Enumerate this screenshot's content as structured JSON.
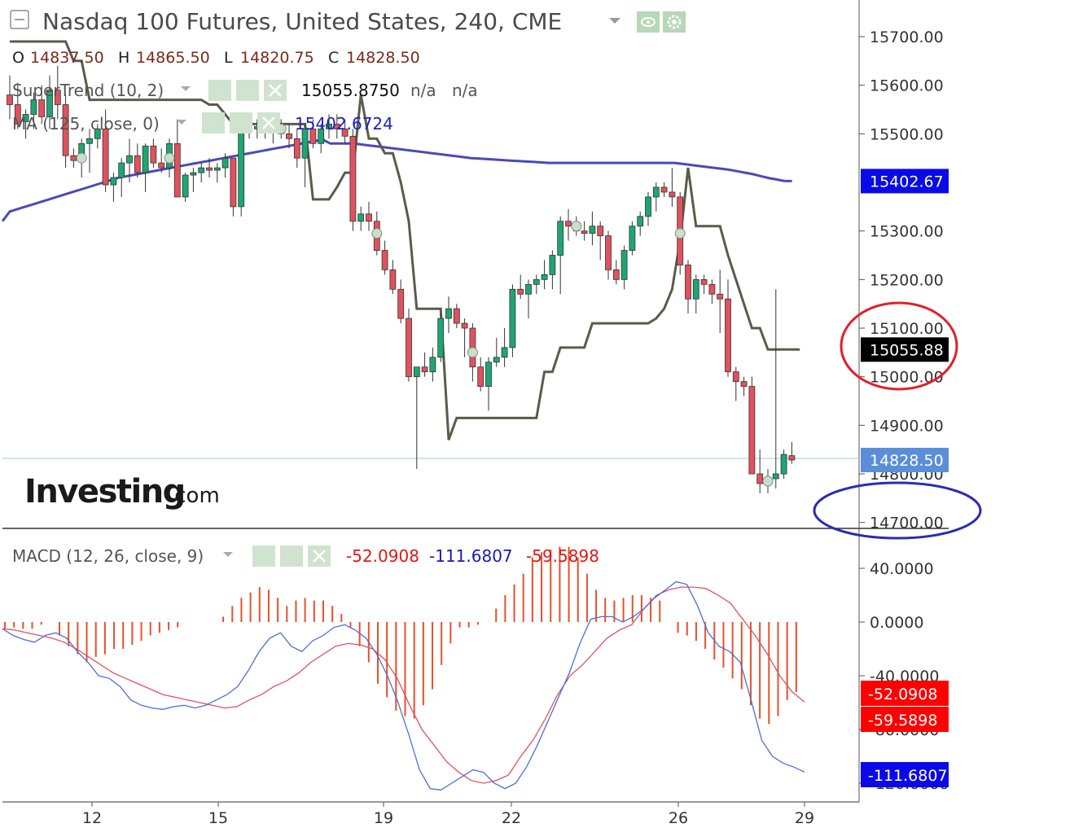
{
  "header": {
    "title": "Nasdaq 100 Futures, United States, 240, CME",
    "ohlc": [
      {
        "label": "O",
        "value": "14837.50"
      },
      {
        "label": "H",
        "value": "14865.50"
      },
      {
        "label": "L",
        "value": "14820.75"
      },
      {
        "label": "C",
        "value": "14828.50"
      }
    ]
  },
  "indicators": {
    "supertrend": {
      "label": "SuperTrend (10, 2)",
      "value": "15055.8750",
      "na1": "n/a",
      "na2": "n/a"
    },
    "ma": {
      "label": "MA (125, close, 0)",
      "value": "15402.6724"
    },
    "macd": {
      "label": "MACD (12, 26, close, 9)",
      "hist": "-52.0908",
      "macd": "-111.6807",
      "signal": "-59.5898"
    }
  },
  "logo": {
    "brand": "Investing",
    "suffix": ".com"
  },
  "colors": {
    "up": "#1ea672",
    "down": "#e0525e",
    "ma": "#4a4ab8",
    "supertrend": "#5b5b49",
    "macd_line": "#4e6fd8",
    "signal_line": "#e0525e",
    "hist": "#e8502a",
    "red_circle": "#e0202a",
    "blue_circle": "#2b2bb3"
  },
  "chart_data": [
    {
      "type": "candlestick",
      "title": "Nasdaq 100 Futures, United States, 240, CME",
      "x_ticks": [
        "12",
        "15",
        "19",
        "22",
        "26",
        "29"
      ],
      "y_ticks": [
        "15700.00",
        "15600.00",
        "15500.00",
        "15300.00",
        "15200.00",
        "15100.00",
        "15000.00",
        "14900.00",
        "14800.00",
        "14700.00"
      ],
      "ylim": [
        14660,
        15760
      ],
      "price_labels": [
        {
          "name": "MA",
          "value": "15402.67"
        },
        {
          "name": "SuperTrend",
          "value": "15055.88"
        },
        {
          "name": "Close",
          "value": "14828.50"
        }
      ],
      "candles": [
        [
          15580,
          15620,
          15530,
          15560
        ],
        [
          15560,
          15605,
          15510,
          15520
        ],
        [
          15525,
          15550,
          15490,
          15540
        ],
        [
          15540,
          15585,
          15510,
          15570
        ],
        [
          15570,
          15600,
          15520,
          15535
        ],
        [
          15535,
          15620,
          15510,
          15590
        ],
        [
          15590,
          15640,
          15530,
          15560
        ],
        [
          15560,
          15580,
          15430,
          15455
        ],
        [
          15455,
          15470,
          15430,
          15445
        ],
        [
          15445,
          15490,
          15410,
          15480
        ],
        [
          15480,
          15510,
          15420,
          15490
        ],
        [
          15490,
          15520,
          15470,
          15510
        ],
        [
          15510,
          15550,
          15380,
          15395
        ],
        [
          15395,
          15420,
          15360,
          15410
        ],
        [
          15410,
          15450,
          15370,
          15440
        ],
        [
          15440,
          15490,
          15400,
          15455
        ],
        [
          15455,
          15480,
          15410,
          15420
        ],
        [
          15420,
          15480,
          15380,
          15475
        ],
        [
          15475,
          15490,
          15430,
          15440
        ],
        [
          15440,
          15470,
          15420,
          15430
        ],
        [
          15430,
          15490,
          15410,
          15480
        ],
        [
          15480,
          15530,
          15370,
          15370
        ],
        [
          15370,
          15420,
          15360,
          15415
        ],
        [
          15415,
          15430,
          15380,
          15420
        ],
        [
          15420,
          15440,
          15400,
          15430
        ],
        [
          15430,
          15450,
          15410,
          15425
        ],
        [
          15425,
          15440,
          15400,
          15430
        ],
        [
          15430,
          15460,
          15410,
          15450
        ],
        [
          15450,
          15450,
          15330,
          15350
        ],
        [
          15350,
          15520,
          15330,
          15510
        ],
        [
          15510,
          15530,
          15490,
          15510
        ],
        [
          15510,
          15530,
          15490,
          15515
        ],
        [
          15515,
          15530,
          15490,
          15505
        ],
        [
          15505,
          15520,
          15480,
          15510
        ],
        [
          15510,
          15530,
          15490,
          15500
        ],
        [
          15500,
          15520,
          15470,
          15490
        ],
        [
          15490,
          15510,
          15430,
          15450
        ],
        [
          15450,
          15520,
          15390,
          15510
        ],
        [
          15510,
          15530,
          15470,
          15480
        ],
        [
          15480,
          15520,
          15460,
          15510
        ],
        [
          15510,
          15540,
          15490,
          15520
        ],
        [
          15520,
          15540,
          15490,
          15510
        ],
        [
          15510,
          15530,
          15480,
          15495
        ],
        [
          15495,
          15510,
          15300,
          15320
        ],
        [
          15320,
          15350,
          15300,
          15335
        ],
        [
          15335,
          15360,
          15300,
          15320
        ],
        [
          15320,
          15340,
          15250,
          15260
        ],
        [
          15260,
          15280,
          15210,
          15220
        ],
        [
          15220,
          15240,
          15170,
          15180
        ],
        [
          15180,
          15200,
          15110,
          15120
        ],
        [
          15120,
          15140,
          14990,
          15000
        ],
        [
          15000,
          15020,
          14810,
          15020
        ],
        [
          15020,
          15050,
          15000,
          15010
        ],
        [
          15010,
          15060,
          14990,
          15040
        ],
        [
          15040,
          15130,
          15030,
          15120
        ],
        [
          15120,
          15165,
          15090,
          15140
        ],
        [
          15140,
          15150,
          15100,
          15110
        ],
        [
          15110,
          15120,
          15040,
          15100
        ],
        [
          15100,
          15110,
          14990,
          15020
        ],
        [
          15020,
          15040,
          14970,
          14980
        ],
        [
          14980,
          15040,
          14930,
          15030
        ],
        [
          15030,
          15080,
          15020,
          15040
        ],
        [
          15040,
          15100,
          15020,
          15060
        ],
        [
          15060,
          15190,
          15040,
          15180
        ],
        [
          15180,
          15210,
          15160,
          15170
        ],
        [
          15170,
          15200,
          15120,
          15190
        ],
        [
          15190,
          15210,
          15170,
          15200
        ],
        [
          15200,
          15240,
          15180,
          15210
        ],
        [
          15210,
          15260,
          15180,
          15250
        ],
        [
          15250,
          15330,
          15170,
          15320
        ],
        [
          15320,
          15345,
          15280,
          15310
        ],
        [
          15310,
          15330,
          15290,
          15300
        ],
        [
          15300,
          15320,
          15280,
          15295
        ],
        [
          15295,
          15340,
          15270,
          15310
        ],
        [
          15310,
          15320,
          15240,
          15290
        ],
        [
          15290,
          15300,
          15200,
          15220
        ],
        [
          15220,
          15240,
          15190,
          15200
        ],
        [
          15200,
          15270,
          15180,
          15260
        ],
        [
          15260,
          15320,
          15250,
          15310
        ],
        [
          15310,
          15340,
          15290,
          15330
        ],
        [
          15330,
          15380,
          15310,
          15370
        ],
        [
          15370,
          15400,
          15340,
          15390
        ],
        [
          15390,
          15400,
          15370,
          15380
        ],
        [
          15380,
          15430,
          15350,
          15370
        ],
        [
          15370,
          15380,
          15210,
          15230
        ],
        [
          15230,
          15240,
          15130,
          15160
        ],
        [
          15160,
          15210,
          15130,
          15200
        ],
        [
          15200,
          15210,
          15170,
          15190
        ],
        [
          15190,
          15200,
          15150,
          15170
        ],
        [
          15170,
          15220,
          15090,
          15160
        ],
        [
          15160,
          15200,
          15000,
          15010
        ],
        [
          15010,
          15020,
          14950,
          14990
        ],
        [
          14990,
          15000,
          14960,
          14980
        ],
        [
          14980,
          15000,
          14800,
          14800
        ],
        [
          14800,
          14850,
          14760,
          14780
        ],
        [
          14780,
          14810,
          14760,
          14790
        ],
        [
          14790,
          15180,
          14770,
          14800
        ],
        [
          14800,
          14850,
          14790,
          14840
        ],
        [
          14837.5,
          14865.5,
          14820.75,
          14828.5
        ]
      ],
      "supertrend": [
        15690,
        15690,
        15690,
        15690,
        15690,
        15690,
        15690,
        15690,
        15650,
        15650,
        15570,
        15570,
        15570,
        15570,
        15570,
        15570,
        15570,
        15570,
        15570,
        15570,
        15570,
        15570,
        15570,
        15570,
        15570,
        15560,
        15560,
        15540,
        15520,
        15520,
        15520,
        15520,
        15520,
        15520,
        15520,
        15520,
        15520,
        15520,
        15365,
        15365,
        15365,
        15390,
        15420,
        15420,
        15580,
        15490,
        15490,
        15460,
        15460,
        15400,
        15320,
        15140,
        15140,
        15140,
        15140,
        14870,
        14915,
        14915,
        14915,
        14915,
        14915,
        14915,
        14915,
        14915,
        14915,
        14915,
        14915,
        15010,
        15010,
        15060,
        15060,
        15060,
        15060,
        15110,
        15110,
        15110,
        15110,
        15110,
        15110,
        15110,
        15110,
        15120,
        15140,
        15180,
        15280,
        15430,
        15310,
        15310,
        15310,
        15310,
        15250,
        15200,
        15150,
        15100,
        15100,
        15055.875,
        15055.875,
        15055.875,
        15055.875,
        15055.875
      ],
      "ma": [
        15340,
        15345,
        15350,
        15355,
        15360,
        15365,
        15370,
        15375,
        15380,
        15385,
        15390,
        15395,
        15400,
        15405,
        15410,
        15413,
        15416,
        15419,
        15422,
        15425,
        15428,
        15431,
        15434,
        15437,
        15440,
        15443,
        15446,
        15449,
        15452,
        15455,
        15458,
        15461,
        15464,
        15467,
        15470,
        15473,
        15476,
        15479,
        15482,
        15485,
        15488,
        15480,
        15480,
        15480,
        15480,
        15478,
        15476,
        15474,
        15472,
        15470,
        15468,
        15466,
        15464,
        15462,
        15460,
        15458,
        15456,
        15454,
        15452,
        15450,
        15449,
        15448,
        15447,
        15446,
        15445,
        15444,
        15443,
        15442,
        15441,
        15440,
        15440,
        15440,
        15440,
        15440,
        15440,
        15440,
        15440,
        15440,
        15440,
        15440,
        15440,
        15440,
        15440,
        15440,
        15440,
        15440,
        15438,
        15436,
        15434,
        15432,
        15430,
        15428,
        15426,
        15423,
        15420,
        15417,
        15413,
        15409,
        15406,
        15403,
        15402.67
      ]
    },
    {
      "type": "line",
      "title": "MACD (12, 26, close, 9)",
      "y_ticks": [
        "40.0000",
        "0.0000",
        "-40.0000",
        "-80.0000",
        "-120.0000"
      ],
      "ylim": [
        -140,
        60
      ],
      "value_labels": [
        {
          "name": "Histogram",
          "value": "-52.0908"
        },
        {
          "name": "Signal",
          "value": "-59.5898"
        },
        {
          "name": "MACD",
          "value": "-111.6807"
        }
      ],
      "series": [
        {
          "name": "MACD",
          "values": [
            -5,
            -10,
            -13,
            -15,
            -10,
            -8,
            -12,
            -22,
            -30,
            -40,
            -42,
            -48,
            -58,
            -62,
            -64,
            -65,
            -63,
            -62,
            -64,
            -62,
            -58,
            -54,
            -48,
            -36,
            -22,
            -12,
            -8,
            -18,
            -22,
            -14,
            -10,
            -4,
            -2,
            -6,
            -12,
            -24,
            -40,
            -60,
            -84,
            -110,
            -124,
            -125,
            -120,
            -115,
            -110,
            -112,
            -120,
            -124,
            -120,
            -108,
            -92,
            -74,
            -56,
            -38,
            -16,
            2,
            4,
            4,
            0,
            4,
            10,
            18,
            24,
            30,
            28,
            12,
            -8,
            -18,
            -22,
            -30,
            -58,
            -88,
            -100,
            -105,
            -108,
            -111.6807
          ]
        },
        {
          "name": "Signal",
          "values": [
            -5,
            -6,
            -8,
            -10,
            -12,
            -15,
            -20,
            -26,
            -32,
            -38,
            -42,
            -46,
            -50,
            -54,
            -56,
            -58,
            -60,
            -62,
            -64,
            -63,
            -58,
            -54,
            -48,
            -44,
            -38,
            -30,
            -24,
            -18,
            -16,
            -17,
            -20,
            -28,
            -42,
            -62,
            -80,
            -92,
            -104,
            -112,
            -118,
            -120,
            -118,
            -114,
            -100,
            -88,
            -72,
            -54,
            -40,
            -32,
            -22,
            -12,
            -6,
            -2,
            10,
            20,
            24,
            26,
            26,
            25,
            20,
            14,
            2,
            -10,
            -24,
            -40,
            -52,
            -59.5898
          ]
        },
        {
          "name": "Histogram",
          "values": [
            -5,
            -4,
            -5,
            -5,
            -2,
            0,
            -10,
            -18,
            -24,
            -30,
            -26,
            -24,
            -20,
            -20,
            -17,
            -14,
            -10,
            -8,
            -6,
            -4,
            0,
            0,
            0,
            0,
            4,
            12,
            18,
            22,
            26,
            24,
            18,
            12,
            16,
            18,
            16,
            16,
            12,
            6,
            -4,
            -18,
            -30,
            -46,
            -56,
            -66,
            -70,
            -72,
            -62,
            -50,
            -32,
            -16,
            -4,
            -4,
            -2,
            0,
            10,
            20,
            28,
            36,
            48,
            52,
            54,
            56,
            56,
            48,
            36,
            24,
            18,
            16,
            18,
            20,
            20,
            18,
            16,
            0,
            -8,
            -10,
            -14,
            -20,
            -28,
            -34,
            -42,
            -50,
            -62,
            -72,
            -76,
            -70,
            -58,
            -52.0908
          ]
        }
      ]
    }
  ]
}
